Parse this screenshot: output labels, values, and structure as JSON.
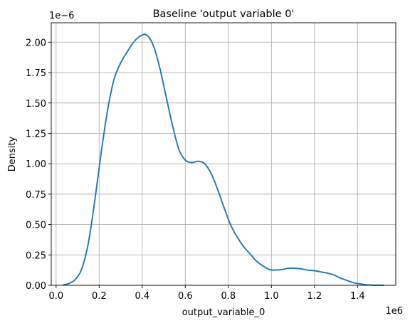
{
  "chart_data": {
    "type": "line",
    "title": "Baseline 'output variable 0'",
    "xlabel": "output_variable_0",
    "ylabel": "Density",
    "x_offset_label": "1e6",
    "y_offset_label": "1e−6",
    "xlim": [
      -0.0225,
      1.5775
    ],
    "ylim": [
      0,
      2.16
    ],
    "x_ticks": [
      0.0,
      0.2,
      0.4,
      0.6,
      0.8,
      1.0,
      1.2,
      1.4
    ],
    "x_tick_labels": [
      "0.0",
      "0.2",
      "0.4",
      "0.6",
      "0.8",
      "1.0",
      "1.2",
      "1.4"
    ],
    "y_ticks": [
      0.0,
      0.25,
      0.5,
      0.75,
      1.0,
      1.25,
      1.5,
      1.75,
      2.0
    ],
    "y_tick_labels": [
      "0.00",
      "0.25",
      "0.50",
      "0.75",
      "1.00",
      "1.25",
      "1.50",
      "1.75",
      "2.00"
    ],
    "grid": true,
    "line_color": "#1f77b4",
    "grid_color": "#b0b0b0",
    "series": [
      {
        "x": [
          0.035,
          0.06,
          0.09,
          0.12,
          0.15,
          0.18,
          0.21,
          0.24,
          0.27,
          0.3,
          0.33,
          0.36,
          0.39,
          0.42,
          0.45,
          0.48,
          0.51,
          0.54,
          0.57,
          0.6,
          0.63,
          0.66,
          0.69,
          0.72,
          0.75,
          0.78,
          0.81,
          0.84,
          0.87,
          0.9,
          0.93,
          0.96,
          0.99,
          1.02,
          1.05,
          1.08,
          1.11,
          1.14,
          1.17,
          1.2,
          1.23,
          1.26,
          1.29,
          1.32,
          1.35,
          1.38,
          1.41,
          1.44,
          1.47,
          1.5,
          1.52
        ],
        "y": [
          0.005,
          0.015,
          0.05,
          0.14,
          0.35,
          0.7,
          1.1,
          1.45,
          1.7,
          1.83,
          1.92,
          2.0,
          2.05,
          2.06,
          1.98,
          1.8,
          1.56,
          1.32,
          1.12,
          1.03,
          1.01,
          1.02,
          1.0,
          0.92,
          0.79,
          0.64,
          0.5,
          0.4,
          0.32,
          0.26,
          0.2,
          0.16,
          0.13,
          0.125,
          0.13,
          0.14,
          0.14,
          0.135,
          0.125,
          0.12,
          0.11,
          0.1,
          0.085,
          0.06,
          0.04,
          0.022,
          0.012,
          0.005,
          0.002,
          0.001,
          0.0
        ]
      }
    ]
  }
}
